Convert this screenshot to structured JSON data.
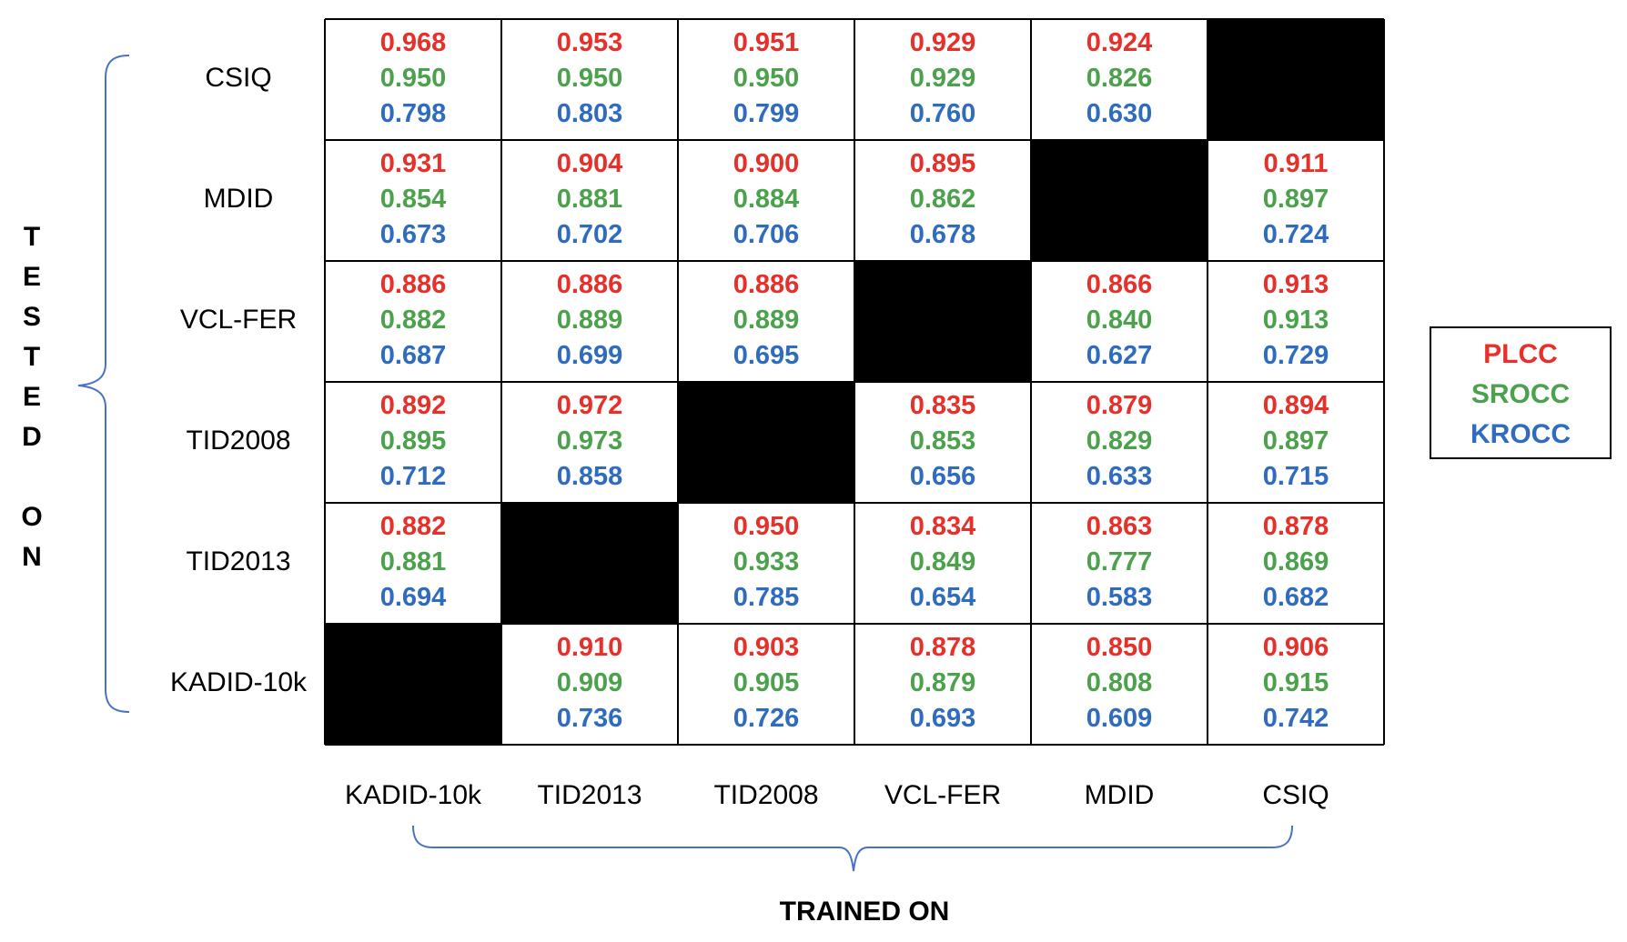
{
  "chart_data": {
    "type": "table",
    "title": "",
    "xlabel": "TRAINED ON",
    "ylabel": "TESTED ON",
    "ylabel_letters": [
      "T",
      "E",
      "S",
      "T",
      "E",
      "D",
      "",
      "O",
      "N"
    ],
    "columns": [
      "KADID-10k",
      "TID2013",
      "TID2008",
      "VCL-FER",
      "MDID",
      "CSIQ"
    ],
    "rows": [
      "CSIQ",
      "MDID",
      "VCL-FER",
      "TID2008",
      "TID2013",
      "KADID-10k"
    ],
    "metrics": [
      "PLCC",
      "SROCC",
      "KROCC"
    ],
    "metric_colors": {
      "PLCC": "#e8302a",
      "SROCC": "#4ca24c",
      "KROCC": "#2f6cbf"
    },
    "values": [
      [
        [
          "0.968",
          "0.950",
          "0.798"
        ],
        [
          "0.953",
          "0.950",
          "0.803"
        ],
        [
          "0.951",
          "0.950",
          "0.799"
        ],
        [
          "0.929",
          "0.929",
          "0.760"
        ],
        [
          "0.924",
          "0.826",
          "0.630"
        ],
        null
      ],
      [
        [
          "0.931",
          "0.854",
          "0.673"
        ],
        [
          "0.904",
          "0.881",
          "0.702"
        ],
        [
          "0.900",
          "0.884",
          "0.706"
        ],
        [
          "0.895",
          "0.862",
          "0.678"
        ],
        null,
        [
          "0.911",
          "0.897",
          "0.724"
        ]
      ],
      [
        [
          "0.886",
          "0.882",
          "0.687"
        ],
        [
          "0.886",
          "0.889",
          "0.699"
        ],
        [
          "0.886",
          "0.889",
          "0.695"
        ],
        null,
        [
          "0.866",
          "0.840",
          "0.627"
        ],
        [
          "0.913",
          "0.913",
          "0.729"
        ]
      ],
      [
        [
          "0.892",
          "0.895",
          "0.712"
        ],
        [
          "0.972",
          "0.973",
          "0.858"
        ],
        null,
        [
          "0.835",
          "0.853",
          "0.656"
        ],
        [
          "0.879",
          "0.829",
          "0.633"
        ],
        [
          "0.894",
          "0.897",
          "0.715"
        ]
      ],
      [
        [
          "0.882",
          "0.881",
          "0.694"
        ],
        null,
        [
          "0.950",
          "0.933",
          "0.785"
        ],
        [
          "0.834",
          "0.849",
          "0.654"
        ],
        [
          "0.863",
          "0.777",
          "0.583"
        ],
        [
          "0.878",
          "0.869",
          "0.682"
        ]
      ],
      [
        null,
        [
          "0.910",
          "0.909",
          "0.736"
        ],
        [
          "0.903",
          "0.905",
          "0.726"
        ],
        [
          "0.878",
          "0.879",
          "0.693"
        ],
        [
          "0.850",
          "0.808",
          "0.609"
        ],
        [
          "0.906",
          "0.915",
          "0.742"
        ]
      ]
    ],
    "legend": {
      "placement": "right",
      "entries": [
        "PLCC",
        "SROCC",
        "KROCC"
      ]
    },
    "bracket_color": "#4a72c4"
  }
}
